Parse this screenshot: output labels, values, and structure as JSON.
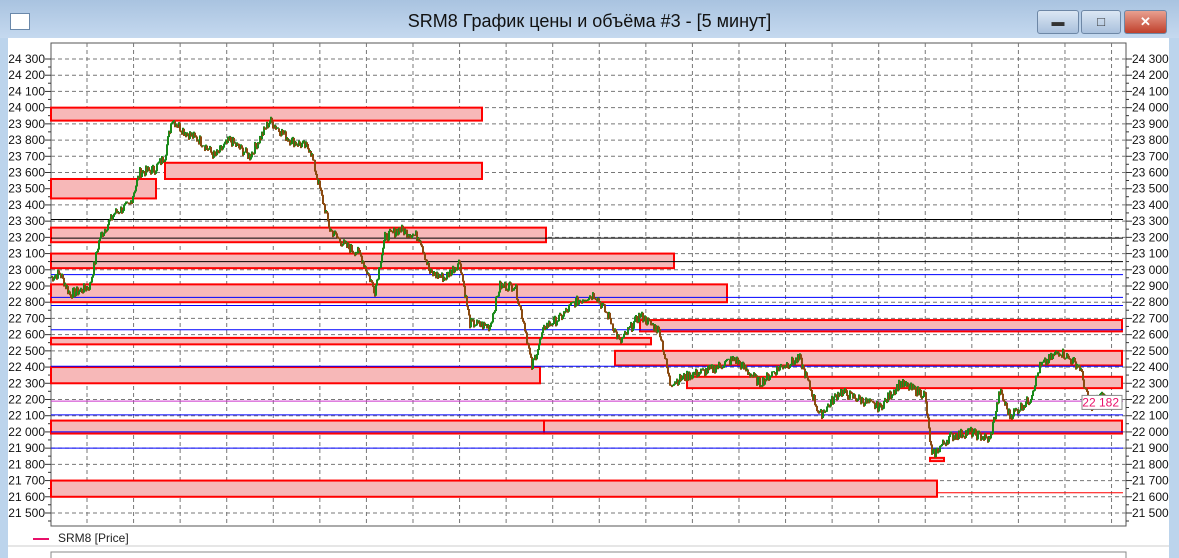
{
  "window": {
    "title": "SRM8 График цены и объёма #3 - [5 минут]",
    "buttons": [
      "minimize",
      "maximize",
      "close"
    ]
  },
  "legend": {
    "label": "SRM8 [Price]",
    "color": "#e8106a"
  },
  "chart_data": {
    "type": "line",
    "title": "SRM8 График цены и объёма #3 - [5 минут]",
    "ylim": [
      21450,
      24380
    ],
    "yticks": [
      "24 300",
      "24 200",
      "24 100",
      "24 000",
      "23 900",
      "23 800",
      "23 700",
      "23 600",
      "23 500",
      "23 400",
      "23 300",
      "23 200",
      "23 100",
      "23 000",
      "22 900",
      "22 800",
      "22 700",
      "22 600",
      "22 500",
      "22 400",
      "22 300",
      "22 200",
      "22 100",
      "22 000",
      "21 900",
      "21 800",
      "21 700",
      "21 600",
      "21 500"
    ],
    "grid": true,
    "last_price": {
      "value": 22182,
      "label": "22 182"
    },
    "series": [
      {
        "name": "SRM8 [Price]",
        "up_color": "#1a8a1a",
        "down_color": "#8a4a10",
        "points": [
          [
            0,
            22950
          ],
          [
            9,
            22980
          ],
          [
            19,
            22850
          ],
          [
            29,
            22870
          ],
          [
            39,
            22900
          ],
          [
            49,
            23200
          ],
          [
            64,
            23350
          ],
          [
            79,
            23400
          ],
          [
            89,
            23600
          ],
          [
            104,
            23620
          ],
          [
            114,
            23700
          ],
          [
            121,
            23930
          ],
          [
            134,
            23850
          ],
          [
            149,
            23800
          ],
          [
            164,
            23700
          ],
          [
            179,
            23800
          ],
          [
            199,
            23700
          ],
          [
            219,
            23920
          ],
          [
            239,
            23800
          ],
          [
            259,
            23750
          ],
          [
            269,
            23500
          ],
          [
            279,
            23250
          ],
          [
            294,
            23150
          ],
          [
            309,
            23100
          ],
          [
            324,
            22870
          ],
          [
            334,
            23200
          ],
          [
            349,
            23250
          ],
          [
            369,
            23200
          ],
          [
            379,
            22980
          ],
          [
            394,
            22950
          ],
          [
            409,
            23050
          ],
          [
            419,
            22670
          ],
          [
            439,
            22650
          ],
          [
            449,
            22900
          ],
          [
            464,
            22900
          ],
          [
            474,
            22650
          ],
          [
            481,
            22400
          ],
          [
            494,
            22650
          ],
          [
            509,
            22700
          ],
          [
            524,
            22800
          ],
          [
            544,
            22850
          ],
          [
            559,
            22700
          ],
          [
            569,
            22550
          ],
          [
            589,
            22720
          ],
          [
            609,
            22620
          ],
          [
            619,
            22300
          ],
          [
            639,
            22350
          ],
          [
            659,
            22380
          ],
          [
            684,
            22450
          ],
          [
            709,
            22300
          ],
          [
            729,
            22400
          ],
          [
            749,
            22450
          ],
          [
            769,
            22100
          ],
          [
            789,
            22250
          ],
          [
            809,
            22200
          ],
          [
            829,
            22150
          ],
          [
            849,
            22300
          ],
          [
            874,
            22230
          ],
          [
            881,
            21850
          ],
          [
            899,
            21970
          ],
          [
            919,
            22000
          ],
          [
            939,
            21950
          ],
          [
            949,
            22250
          ],
          [
            959,
            22100
          ],
          [
            979,
            22200
          ],
          [
            989,
            22400
          ],
          [
            1009,
            22500
          ],
          [
            1029,
            22400
          ],
          [
            1039,
            22150
          ],
          [
            1049,
            22220
          ],
          [
            1069,
            22182
          ]
        ]
      }
    ],
    "zones": [
      {
        "from": 0,
        "to": 431,
        "low": 23920,
        "high": 24000
      },
      {
        "from": 114,
        "to": 431,
        "low": 23560,
        "high": 23660
      },
      {
        "from": 0,
        "to": 105,
        "low": 23440,
        "high": 23560
      },
      {
        "from": 0,
        "to": 495,
        "low": 23170,
        "high": 23260
      },
      {
        "from": 0,
        "to": 623,
        "low": 23010,
        "high": 23100
      },
      {
        "from": 0,
        "to": 676,
        "low": 22800,
        "high": 22910
      },
      {
        "from": 589,
        "to": 1071,
        "low": 22620,
        "high": 22690
      },
      {
        "from": 0,
        "to": 600,
        "low": 22540,
        "high": 22580
      },
      {
        "from": 564,
        "to": 1071,
        "low": 22410,
        "high": 22500
      },
      {
        "from": 0,
        "to": 489,
        "low": 22300,
        "high": 22400
      },
      {
        "from": 636,
        "to": 1071,
        "low": 22270,
        "high": 22340
      },
      {
        "from": 0,
        "to": 493,
        "low": 21990,
        "high": 22070
      },
      {
        "from": 493,
        "to": 1071,
        "low": 21990,
        "high": 22070
      },
      {
        "from": 879,
        "to": 893,
        "low": 21820,
        "high": 21840
      },
      {
        "from": 0,
        "to": 886,
        "low": 21600,
        "high": 21700
      }
    ],
    "hlines": [
      {
        "price": 23310,
        "color": "#000000"
      },
      {
        "price": 23195,
        "color": "#000000"
      },
      {
        "price": 23050,
        "color": "#000000"
      },
      {
        "price": 22970,
        "color": "#0000ff"
      },
      {
        "price": 22830,
        "color": "#0000ff"
      },
      {
        "price": 22780,
        "color": "#0000ff"
      },
      {
        "price": 22630,
        "color": "#0000ff"
      },
      {
        "price": 22405,
        "color": "#0000ff"
      },
      {
        "price": 22105,
        "color": "#0000ff"
      },
      {
        "price": 22000,
        "color": "#0000ff"
      },
      {
        "price": 21900,
        "color": "#0000ff"
      },
      {
        "price": 22190,
        "color": "#cc33cc"
      },
      {
        "price": 21625,
        "color": "#ff0000",
        "from": 886
      }
    ]
  }
}
